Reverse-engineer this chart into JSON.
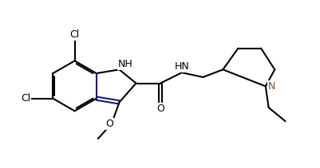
{
  "bg_color": "#ffffff",
  "line_color": "#000000",
  "line_color2": "#1a1a6e",
  "n_color": "#8B4513",
  "lw": 1.5,
  "doff": 0.022,
  "xlim": [
    0.0,
    4.2
  ],
  "ylim": [
    0.05,
    2.1
  ]
}
